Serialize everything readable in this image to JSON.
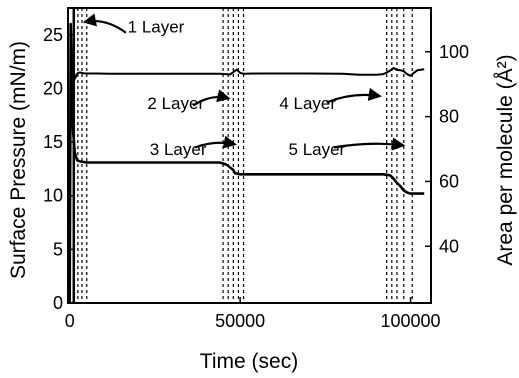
{
  "chart_data": {
    "type": "line",
    "title": "",
    "xlabel": "Time (sec)",
    "ylabel_left": "Surface Pressure (mN/m)",
    "ylabel_right": "Area per molecule (Å²)",
    "xlim": [
      -500,
      106000
    ],
    "ylim_left": [
      0,
      27.5
    ],
    "ylim_right": [
      22.5,
      113.5
    ],
    "xticks": [
      0,
      50000,
      100000
    ],
    "xtick_labels": [
      "0",
      "50000",
      "100000"
    ],
    "yticks_left": [
      0,
      5,
      10,
      15,
      20,
      25
    ],
    "yticks_right": [
      40,
      60,
      80,
      100
    ],
    "grid": false,
    "legend": "none",
    "series": [
      {
        "axis": "left",
        "style": "solid-thick",
        "x": [
          0,
          300,
          600,
          1000,
          1500,
          2200,
          3000,
          5000,
          10000,
          20000,
          30000,
          40000,
          44000,
          46000,
          48000,
          48500,
          50000,
          60000,
          70000,
          80000,
          90000,
          92000,
          94000,
          95000,
          96000,
          97000,
          98000,
          99000,
          100000,
          102000,
          104000
        ],
        "y": [
          0,
          26,
          21,
          16,
          14,
          13.3,
          13.2,
          13.1,
          13.1,
          13.1,
          13.1,
          13.1,
          13.1,
          12.9,
          12.4,
          12.1,
          12.0,
          12.0,
          12.0,
          12.0,
          12.0,
          12.0,
          11.9,
          11.6,
          11.2,
          10.9,
          10.5,
          10.3,
          10.2,
          10.2,
          10.2
        ]
      },
      {
        "axis": "right",
        "style": "solid-thin",
        "x": [
          1500,
          2000,
          2500,
          3000,
          4000,
          5000,
          8000,
          12000,
          20000,
          30000,
          40000,
          44000,
          46000,
          47000,
          48000,
          49000,
          50000,
          51000,
          55000,
          60000,
          70000,
          80000,
          85000,
          90000,
          92000,
          93000,
          94000,
          95000,
          96000,
          97000,
          98000,
          99000,
          100000,
          101000,
          102000,
          104000
        ],
        "y": [
          91.5,
          93,
          93.5,
          93.6,
          93.4,
          93.3,
          93.3,
          93.2,
          93.2,
          93.2,
          93.2,
          93.2,
          93.1,
          93.0,
          93.7,
          94.5,
          93.5,
          93.2,
          93.3,
          93.3,
          93.3,
          93.2,
          92.9,
          92.9,
          93.1,
          93.6,
          94.2,
          95,
          94.4,
          94.3,
          94.0,
          93.1,
          92.6,
          93.5,
          94.3,
          94.6
        ]
      }
    ],
    "vertical_lines": [
      {
        "x": 1200,
        "style": "solid"
      },
      {
        "x": 2400,
        "style": "dashed"
      },
      {
        "x": 3600,
        "style": "dashed"
      },
      {
        "x": 5000,
        "style": "dashed"
      },
      {
        "x": 45000,
        "style": "dashed"
      },
      {
        "x": 46500,
        "style": "dashed"
      },
      {
        "x": 48000,
        "style": "dashed"
      },
      {
        "x": 49500,
        "style": "dashed"
      },
      {
        "x": 51000,
        "style": "dashed"
      },
      {
        "x": 93000,
        "style": "dashed"
      },
      {
        "x": 94500,
        "style": "dashed"
      },
      {
        "x": 96000,
        "style": "dashed"
      },
      {
        "x": 98000,
        "style": "dashed"
      },
      {
        "x": 100500,
        "style": "dashed"
      }
    ],
    "annotations": [
      {
        "text": "1 Layer",
        "x": 17000,
        "y": 25.2,
        "arrow_from": [
          16500,
          25.2
        ],
        "arrow_to": [
          4600,
          26.2
        ]
      },
      {
        "text": "2 Layer",
        "x": 22800,
        "y": 18.1,
        "arrow_from": [
          36200,
          18.4
        ],
        "arrow_to": [
          46400,
          19.1
        ]
      },
      {
        "text": "3 Layer",
        "x": 23500,
        "y": 13.8,
        "arrow_from": [
          36800,
          14.5
        ],
        "arrow_to": [
          48300,
          14.8
        ]
      },
      {
        "text": "4 Layer",
        "x": 61500,
        "y": 18.1,
        "arrow_from": [
          75400,
          18.7
        ],
        "arrow_to": [
          90800,
          19.3
        ]
      },
      {
        "text": "5 Layer",
        "x": 64200,
        "y": 13.8,
        "arrow_from": [
          77500,
          14.5
        ],
        "arrow_to": [
          97700,
          14.7
        ]
      }
    ]
  }
}
